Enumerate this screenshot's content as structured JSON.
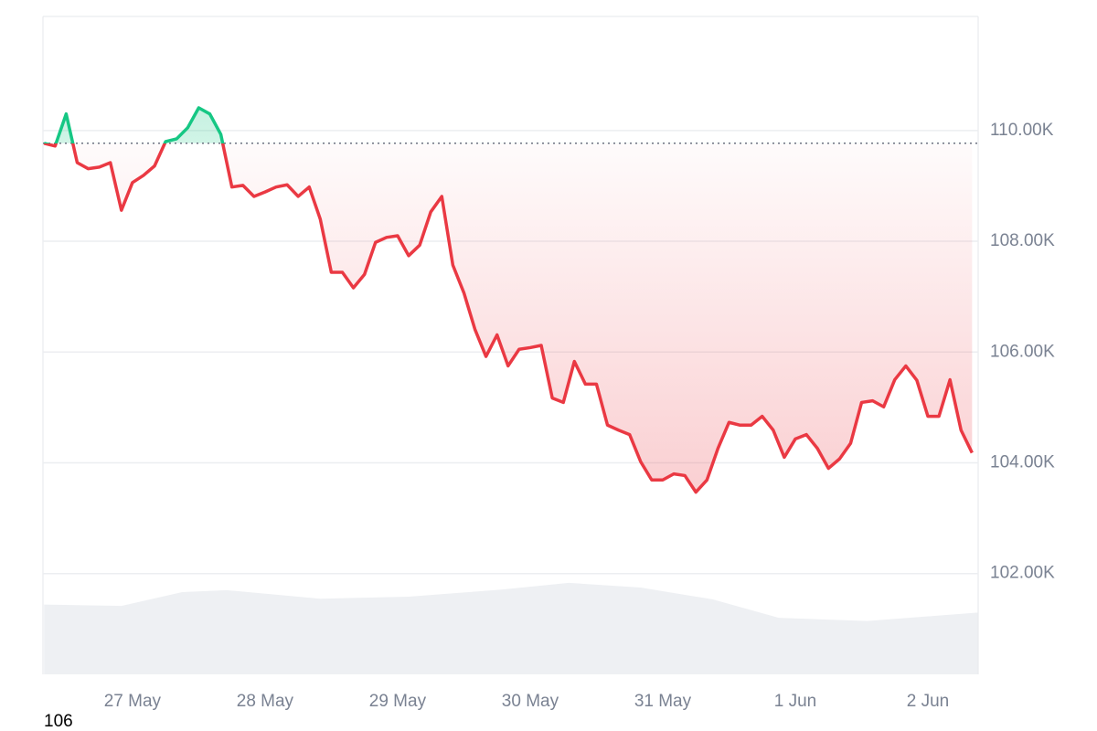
{
  "chart_data": {
    "type": "line",
    "x": [
      -16,
      -14,
      -12,
      -10,
      -8,
      -6,
      -4,
      -2,
      0,
      2,
      4,
      6,
      8,
      10,
      12,
      14,
      16,
      18,
      20,
      22,
      24,
      26,
      28,
      30,
      32,
      34,
      36,
      38,
      40,
      42,
      44,
      46,
      48,
      50,
      52,
      54,
      56,
      58,
      60,
      62,
      64,
      66,
      68,
      70,
      72,
      74,
      76,
      78,
      80,
      82,
      84,
      86,
      88,
      90,
      92,
      94,
      96,
      98,
      100,
      102,
      104,
      106,
      108,
      110,
      112,
      114,
      116,
      118,
      120,
      122,
      124,
      126,
      128,
      130,
      132,
      134,
      136,
      138,
      140,
      142,
      144,
      146,
      148,
      150,
      152
    ],
    "values": [
      109770,
      109720,
      110300,
      109420,
      109310,
      109340,
      109420,
      108560,
      109060,
      109190,
      109360,
      109800,
      109850,
      110050,
      110410,
      110300,
      109930,
      108980,
      109010,
      108810,
      108890,
      108980,
      109020,
      108810,
      108980,
      108400,
      107440,
      107440,
      107160,
      107400,
      107980,
      108070,
      108100,
      107740,
      107930,
      108530,
      108810,
      107570,
      107070,
      106410,
      105920,
      106310,
      105750,
      106050,
      106080,
      106120,
      105170,
      105090,
      105830,
      105420,
      105420,
      104680,
      104590,
      104510,
      104020,
      103690,
      103690,
      103800,
      103770,
      103470,
      103690,
      104260,
      104730,
      104680,
      104680,
      104840,
      104590,
      104100,
      104430,
      104510,
      104260,
      103900,
      104070,
      104350,
      105090,
      105120,
      105010,
      105500,
      105750,
      105490,
      104840,
      104840,
      105500,
      104590,
      104180
    ],
    "baseline": 109770,
    "color_up": "#16c784",
    "color_down": "#ea3943",
    "xlim": [
      -16.2,
      153.1
    ],
    "xticks": [
      {
        "value": 0,
        "label": "27 May"
      },
      {
        "value": 24,
        "label": "28 May"
      },
      {
        "value": 48,
        "label": "29 May"
      },
      {
        "value": 72,
        "label": "30 May"
      },
      {
        "value": 96,
        "label": "31 May"
      },
      {
        "value": 120,
        "label": "1 Jun"
      },
      {
        "value": 144,
        "label": "2 Jun"
      }
    ],
    "ylim": [
      100180,
      112060
    ],
    "yticks": [
      {
        "value": 102000,
        "label": "102.00K"
      },
      {
        "value": 104000,
        "label": "104.00K"
      },
      {
        "value": 106000,
        "label": "106.00K"
      },
      {
        "value": 108000,
        "label": "108.00K"
      },
      {
        "value": 110000,
        "label": "110.00K"
      }
    ],
    "grid": true,
    "volume": {
      "x": [
        -16,
        -2,
        9,
        17,
        34,
        50,
        67,
        79,
        92,
        105,
        117,
        133,
        153
      ],
      "values": [
        10.6,
        10.4,
        12.5,
        12.8,
        11.5,
        11.8,
        12.9,
        13.9,
        13.2,
        11.4,
        8.6,
        8.1,
        9.4
      ],
      "color": "#eef0f3"
    },
    "y2lim": [
      0,
      100
    ],
    "footer_text": "106"
  }
}
